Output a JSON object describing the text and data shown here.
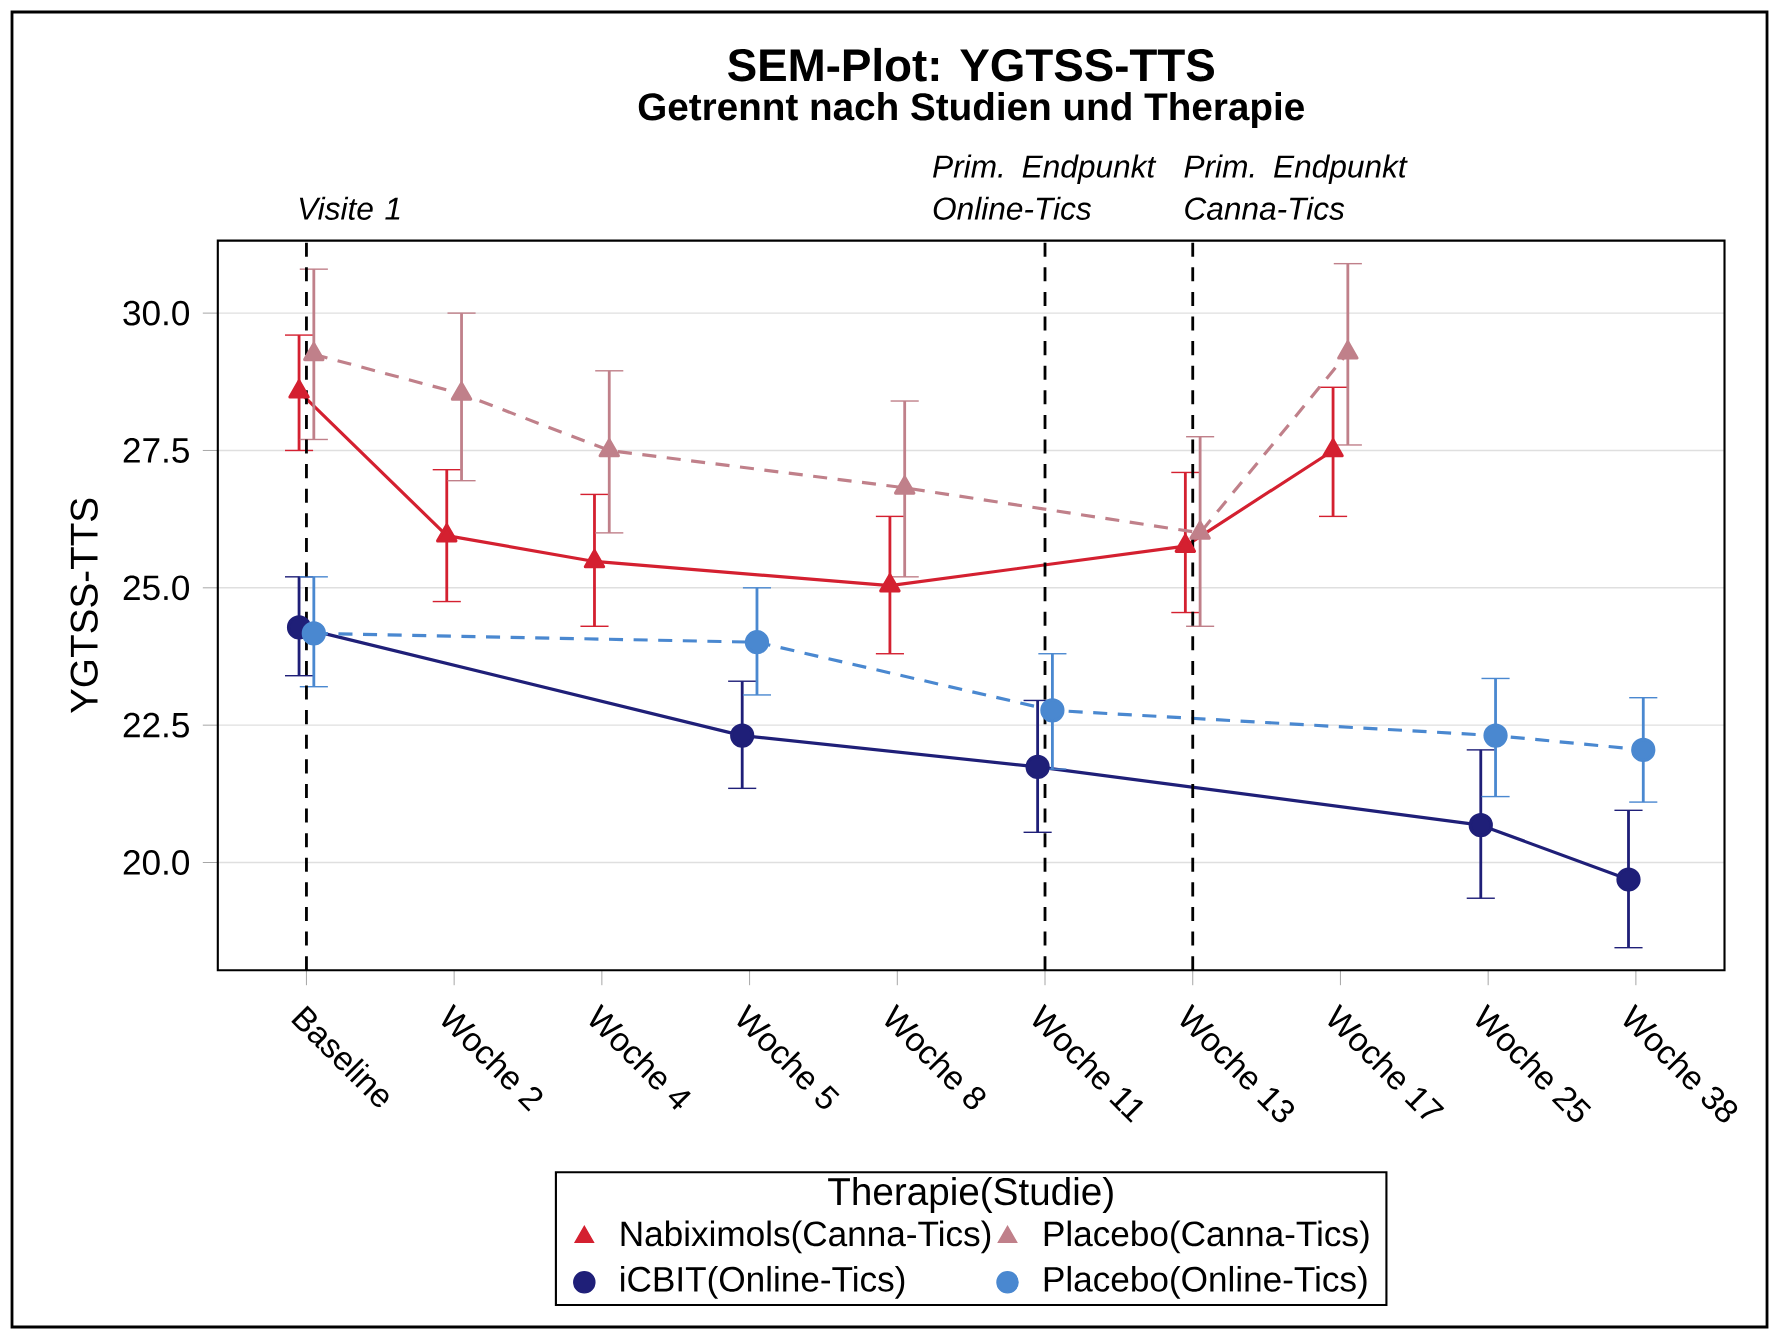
{
  "chart_data": {
    "type": "line",
    "title": "SEM-Plot: YGTSS-TTS",
    "subtitle": "Getrennt nach Studien und Therapie",
    "ylabel": "YGTSS-TTS",
    "legend_title": "Therapie(Studie)",
    "categories": [
      "Baseline",
      "Woche 2",
      "Woche 4",
      "Woche 5",
      "Woche 8",
      "Woche 11",
      "Woche 13",
      "Woche 17",
      "Woche 25",
      "Woche 38"
    ],
    "series": [
      {
        "name": "Nabiximols(Canna-Tics)",
        "color": "#d42030",
        "marker": "triangle",
        "line_style": "solid",
        "values": [
          28.57,
          25.95,
          25.48,
          null,
          25.04,
          null,
          25.76,
          27.5,
          null,
          null
        ],
        "errors": [
          [
            27.5,
            29.6
          ],
          [
            24.75,
            27.15
          ],
          [
            24.3,
            26.7
          ],
          null,
          [
            23.8,
            26.3
          ],
          null,
          [
            24.55,
            27.1
          ],
          [
            26.3,
            28.65
          ],
          null,
          null
        ]
      },
      {
        "name": "Placebo(Canna-Tics)",
        "color": "#c0808a",
        "marker": "triangle",
        "line_style": "dashed",
        "values": [
          29.25,
          28.53,
          27.5,
          null,
          26.82,
          null,
          26.0,
          29.28,
          null,
          null
        ],
        "errors": [
          [
            27.7,
            30.8
          ],
          [
            26.95,
            30.0
          ],
          [
            26.0,
            28.95
          ],
          null,
          [
            25.2,
            28.4
          ],
          null,
          [
            24.3,
            27.75
          ],
          [
            27.6,
            30.9
          ],
          null,
          null
        ]
      },
      {
        "name": "iCBIT(Online-Tics)",
        "color": "#1f1f78",
        "marker": "circle",
        "line_style": "solid",
        "values": [
          24.28,
          null,
          null,
          22.31,
          null,
          21.74,
          null,
          null,
          20.68,
          19.69
        ],
        "errors": [
          [
            23.4,
            25.2
          ],
          null,
          null,
          [
            21.35,
            23.3
          ],
          null,
          [
            20.55,
            22.95
          ],
          null,
          null,
          [
            19.35,
            22.05
          ],
          [
            18.45,
            20.95
          ]
        ]
      },
      {
        "name": "Placebo(Online-Tics)",
        "color": "#4a88d0",
        "marker": "circle",
        "line_style": "dashed",
        "values": [
          24.17,
          null,
          null,
          24.01,
          null,
          22.77,
          null,
          null,
          22.31,
          22.05
        ],
        "errors": [
          [
            23.2,
            25.2
          ],
          null,
          null,
          [
            23.05,
            25.0
          ],
          null,
          [
            21.7,
            23.8
          ],
          null,
          null,
          [
            21.2,
            23.35
          ],
          [
            21.1,
            23.0
          ]
        ]
      }
    ],
    "ylim": [
      18.04,
      31.32
    ],
    "yticks": [
      {
        "value": 20,
        "label": "20.0"
      },
      {
        "value": 22.5,
        "label": "22.5"
      },
      {
        "value": 25,
        "label": "25.0"
      },
      {
        "value": 27.5,
        "label": "27.5"
      },
      {
        "value": 30,
        "label": "30.0"
      }
    ],
    "ref_lines": [
      {
        "axis": "x",
        "value": "Baseline",
        "label": "Visite 1",
        "line_style": "dashed",
        "color": "#000000"
      },
      {
        "axis": "x",
        "value": "Woche 11",
        "label": "Prim. Endpunkt Online-Tics",
        "line_style": "dashed",
        "color": "#000000"
      },
      {
        "axis": "x",
        "value": "Woche 13",
        "label": "Prim. Endpunkt Canna-Tics",
        "line_style": "dashed",
        "color": "#000000"
      }
    ],
    "grid": "y",
    "legend": "bottom"
  }
}
